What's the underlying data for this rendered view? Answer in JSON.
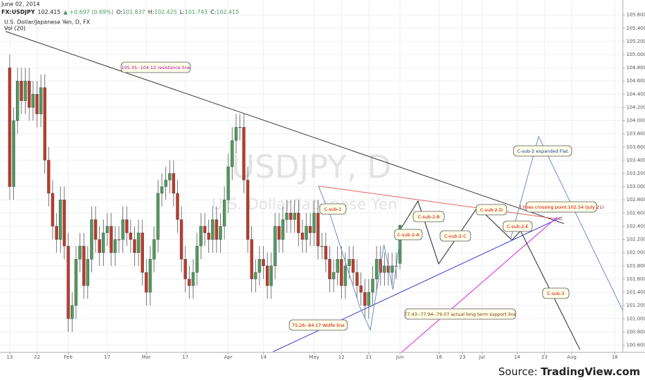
{
  "chart_data": {
    "type": "candlestick",
    "date": "June 02, 2014",
    "symbol": "FX:USDJPY",
    "change": "▲ +0.697 (0.69%)",
    "ohlc_labels": [
      "O:",
      "H:",
      "L:",
      "C:"
    ],
    "subtitle": "U.S. Dollar/Japanese Yen, D, FX",
    "indicator": "Vol (20)",
    "watermark": [
      "USDJPY, D",
      "U.S. Dollar/Japanese Yen"
    ],
    "source": [
      "Source: ",
      "TradingView.com"
    ],
    "up_color": "#4f9a5c",
    "down_color": "#c0392b",
    "grid": true,
    "xlim": [
      -2.48,
      157.1
    ],
    "ylim": [
      100.49,
      105.68
    ],
    "xticks": [
      {
        "value": 0,
        "label": "13"
      },
      {
        "value": 7,
        "label": "22"
      },
      {
        "value": 15,
        "label": "Feb"
      },
      {
        "value": 25,
        "label": "17"
      },
      {
        "value": 35,
        "label": "Mar"
      },
      {
        "value": 45,
        "label": "17"
      },
      {
        "value": 56,
        "label": "Apr"
      },
      {
        "value": 65,
        "label": "14"
      },
      {
        "value": 78,
        "label": "May"
      },
      {
        "value": 85,
        "label": "12"
      },
      {
        "value": 92,
        "label": "21"
      },
      {
        "value": 100,
        "label": "Jun"
      },
      {
        "value": 110,
        "label": "16"
      },
      {
        "value": 116,
        "label": "23"
      },
      {
        "value": 121,
        "label": "Jul"
      },
      {
        "value": 130,
        "label": "14"
      },
      {
        "value": 137,
        "label": "23"
      },
      {
        "value": 144,
        "label": "Aug"
      },
      {
        "value": 155,
        "label": "18"
      }
    ],
    "yticks": [
      {
        "value": 100.6,
        "label": "100.600"
      },
      {
        "value": 100.8,
        "label": "100.800"
      },
      {
        "value": 101.0,
        "label": "101.000"
      },
      {
        "value": 101.2,
        "label": "101.200"
      },
      {
        "value": 101.4,
        "label": "101.400"
      },
      {
        "value": 101.6,
        "label": "101.600"
      },
      {
        "value": 101.8,
        "label": "101.800"
      },
      {
        "value": 102.0,
        "label": "102.000"
      },
      {
        "value": 102.2,
        "label": "102.200"
      },
      {
        "value": 102.4,
        "label": "102.400"
      },
      {
        "value": 102.6,
        "label": "102.600"
      },
      {
        "value": 102.8,
        "label": "102.800"
      },
      {
        "value": 103.0,
        "label": "103.000"
      },
      {
        "value": 103.2,
        "label": "103.200"
      },
      {
        "value": 103.4,
        "label": "103.400"
      },
      {
        "value": 103.6,
        "label": "103.600"
      },
      {
        "value": 103.8,
        "label": "103.800"
      },
      {
        "value": 104.0,
        "label": "104.000"
      },
      {
        "value": 104.2,
        "label": "104.200"
      },
      {
        "value": 104.4,
        "label": "104.400"
      },
      {
        "value": 104.6,
        "label": "104.600"
      },
      {
        "value": 104.8,
        "label": "104.800"
      },
      {
        "value": 105.0,
        "label": "105.000"
      },
      {
        "value": 105.2,
        "label": "105.200"
      },
      {
        "value": 105.4,
        "label": "105.400"
      },
      {
        "value": 105.6,
        "label": "105.600"
      }
    ],
    "x": [
      0,
      1,
      2,
      3,
      4,
      5,
      6,
      7,
      8,
      9,
      10,
      11,
      12,
      13,
      14,
      15,
      16,
      17,
      18,
      19,
      20,
      21,
      22,
      23,
      24,
      25,
      26,
      27,
      28,
      29,
      30,
      31,
      32,
      33,
      34,
      35,
      36,
      37,
      38,
      39,
      40,
      41,
      42,
      43,
      44,
      45,
      46,
      47,
      48,
      49,
      50,
      51,
      52,
      53,
      54,
      55,
      56,
      57,
      58,
      59,
      60,
      61,
      62,
      63,
      64,
      65,
      66,
      67,
      68,
      69,
      70,
      71,
      72,
      73,
      74,
      75,
      76,
      77,
      78,
      79,
      80,
      81,
      82,
      83,
      84,
      85,
      86,
      87,
      88,
      89,
      90,
      91,
      92,
      93,
      94,
      95,
      96,
      97,
      98,
      99,
      100
    ],
    "open": [
      104.8,
      103.0,
      104.0,
      104.6,
      104.3,
      104.6,
      104.2,
      104.4,
      104.1,
      104.5,
      103.4,
      102.9,
      102.4,
      102.2,
      102.8,
      102.1,
      101.0,
      101.2,
      101.9,
      102.1,
      101.5,
      101.9,
      102.5,
      102.2,
      102.0,
      102.3,
      102.4,
      102.0,
      102.2,
      102.2,
      102.5,
      102.3,
      102.2,
      102.0,
      102.3,
      101.7,
      101.4,
      101.9,
      102.2,
      102.9,
      103.0,
      103.1,
      103.2,
      102.9,
      102.5,
      101.9,
      101.6,
      101.5,
      101.7,
      102.1,
      102.4,
      102.3,
      102.2,
      102.5,
      102.2,
      102.4,
      102.8,
      103.3,
      103.7,
      103.9,
      103.9,
      103.1,
      102.2,
      101.6,
      101.7,
      101.9,
      101.8,
      101.5,
      101.8,
      102.4,
      102.2,
      102.5,
      102.6,
      102.5,
      102.6,
      102.3,
      102.2,
      102.4,
      102.3,
      102.6,
      102.1,
      102.1,
      101.9,
      101.6,
      101.7,
      101.9,
      101.5,
      101.8,
      101.9,
      101.7,
      101.5,
      101.4,
      101.2,
      101.4,
      101.6,
      101.9,
      101.7,
      101.8,
      101.7,
      101.8,
      101.837
    ],
    "high": [
      105.0,
      104.2,
      104.8,
      104.8,
      104.8,
      104.8,
      104.6,
      104.6,
      104.7,
      104.7,
      103.6,
      103.1,
      102.6,
      103.0,
      103.0,
      102.3,
      101.4,
      102.1,
      102.3,
      102.3,
      102.1,
      102.7,
      102.7,
      102.4,
      102.5,
      102.6,
      102.6,
      102.4,
      102.4,
      102.7,
      102.7,
      102.5,
      102.4,
      102.5,
      102.5,
      101.9,
      102.1,
      102.4,
      103.1,
      103.2,
      103.3,
      103.4,
      103.4,
      103.1,
      102.7,
      102.1,
      101.8,
      101.9,
      102.3,
      102.6,
      102.6,
      102.5,
      102.7,
      102.7,
      102.6,
      103.0,
      103.5,
      103.9,
      104.1,
      104.1,
      104.1,
      103.3,
      102.4,
      101.9,
      102.1,
      102.1,
      102.0,
      102.0,
      102.6,
      102.6,
      102.7,
      102.8,
      102.8,
      102.8,
      102.8,
      102.5,
      102.6,
      102.6,
      102.8,
      102.8,
      102.3,
      102.3,
      102.1,
      101.9,
      102.1,
      102.1,
      102.0,
      102.1,
      102.1,
      101.9,
      101.7,
      101.6,
      101.6,
      101.8,
      102.1,
      102.1,
      102.0,
      102.0,
      102.0,
      102.0,
      102.425
    ],
    "low": [
      102.8,
      102.8,
      103.8,
      104.1,
      104.1,
      104.0,
      104.0,
      103.9,
      103.9,
      103.2,
      102.7,
      102.2,
      102.0,
      102.0,
      101.9,
      100.8,
      100.8,
      101.0,
      101.7,
      101.3,
      101.3,
      101.7,
      102.0,
      101.8,
      101.8,
      102.1,
      101.8,
      101.8,
      102.0,
      102.0,
      102.1,
      102.0,
      101.8,
      101.8,
      101.5,
      101.2,
      101.2,
      101.7,
      102.0,
      102.7,
      102.8,
      102.9,
      102.7,
      102.3,
      101.7,
      101.4,
      101.3,
      101.3,
      101.5,
      101.9,
      102.1,
      102.0,
      102.0,
      102.0,
      102.0,
      102.2,
      102.6,
      103.1,
      103.5,
      103.7,
      102.9,
      102.0,
      101.4,
      101.4,
      101.5,
      101.6,
      101.3,
      101.3,
      101.6,
      102.0,
      102.0,
      102.3,
      102.3,
      102.3,
      102.1,
      102.0,
      102.0,
      102.1,
      102.1,
      101.9,
      101.9,
      101.7,
      101.4,
      101.4,
      101.5,
      101.3,
      101.3,
      101.6,
      101.5,
      101.3,
      101.2,
      101.0,
      101.0,
      101.2,
      101.4,
      101.5,
      101.5,
      101.5,
      101.5,
      101.6,
      101.743
    ],
    "close": [
      103.0,
      104.0,
      104.6,
      104.3,
      104.6,
      104.2,
      104.4,
      104.1,
      104.5,
      103.4,
      102.9,
      102.4,
      102.2,
      102.8,
      102.1,
      101.0,
      101.2,
      101.9,
      102.1,
      101.5,
      101.9,
      102.5,
      102.2,
      102.0,
      102.3,
      102.4,
      102.0,
      102.2,
      102.2,
      102.5,
      102.3,
      102.2,
      102.0,
      102.3,
      101.7,
      101.4,
      101.9,
      102.2,
      102.9,
      103.0,
      103.1,
      103.2,
      102.9,
      102.5,
      101.9,
      101.6,
      101.5,
      101.7,
      102.1,
      102.4,
      102.3,
      102.2,
      102.5,
      102.2,
      102.4,
      102.8,
      103.3,
      103.7,
      103.9,
      103.9,
      103.1,
      102.2,
      101.6,
      101.7,
      101.9,
      101.8,
      101.5,
      101.8,
      102.4,
      102.2,
      102.5,
      102.6,
      102.5,
      102.6,
      102.3,
      102.2,
      102.4,
      102.3,
      102.6,
      102.1,
      102.1,
      101.9,
      101.6,
      101.7,
      101.9,
      101.5,
      101.8,
      101.9,
      101.7,
      101.5,
      101.4,
      101.2,
      101.4,
      101.6,
      101.9,
      101.7,
      101.8,
      101.7,
      101.8,
      101.8,
      102.415
    ],
    "lines": [
      {
        "color": "#333333",
        "x": [
          -1,
          142
        ],
        "y": [
          105.35,
          102.44
        ]
      },
      {
        "color": "#e06060",
        "x": [
          79.1,
          141.6
        ],
        "y": [
          103.01,
          102.5
        ]
      },
      {
        "color": "#3a3acc",
        "x": [
          67.5,
          141.5
        ],
        "y": [
          100.5,
          102.54
        ]
      },
      {
        "color": "#e020e0",
        "x": [
          100.4,
          140.3
        ],
        "y": [
          100.49,
          102.54
        ]
      },
      {
        "color": "#6a8fc0",
        "x": [
          79.1,
          82.3,
          89.7,
          92.4,
          95.9,
          98.2,
          100.4
        ],
        "y": [
          103.01,
          102.54,
          101.18,
          100.83,
          102.12,
          101.44,
          102.38
        ]
      },
      {
        "color": "#222222",
        "x": [
          100.4,
          104.6,
          109.9,
          119.9,
          128.7,
          130.9,
          146.1
        ],
        "y": [
          102.38,
          102.78,
          101.83,
          102.69,
          102.19,
          102.33,
          100.53
        ]
      },
      {
        "color": "#6a8fc0",
        "x": [
          128.4,
          135.5,
          157.1
        ],
        "y": [
          102.22,
          103.76,
          101.12
        ]
      }
    ],
    "annotations": [
      {
        "text": "105.35--104.12 resistance line",
        "color": "#b000b0"
      },
      {
        "text": "C-sub-1",
        "color": "#cc0000"
      },
      {
        "text": "C-sub-2-B",
        "color": "#cc0000"
      },
      {
        "text": "C-sub-2-A",
        "color": "#cc0000"
      },
      {
        "text": "C-sub-2-C",
        "color": "#cc0000"
      },
      {
        "text": "C-sub-2-D",
        "color": "#cc0000"
      },
      {
        "text": "C-sub-2-E",
        "color": "#cc0000"
      },
      {
        "text": "3 lines crossing point:102.54 (July 21)",
        "color": "#cc0000"
      },
      {
        "text": "C-sub-2 expanded Flat",
        "color": "#1a3fa8"
      },
      {
        "text": "C-sub-3",
        "color": "#cc0000"
      },
      {
        "text": "75.26--84.17 Wolfe line",
        "color": "#cc0000"
      },
      {
        "text": "77.43--77.94--79.07 actual long term support line",
        "color": "#6b3b00"
      }
    ]
  }
}
